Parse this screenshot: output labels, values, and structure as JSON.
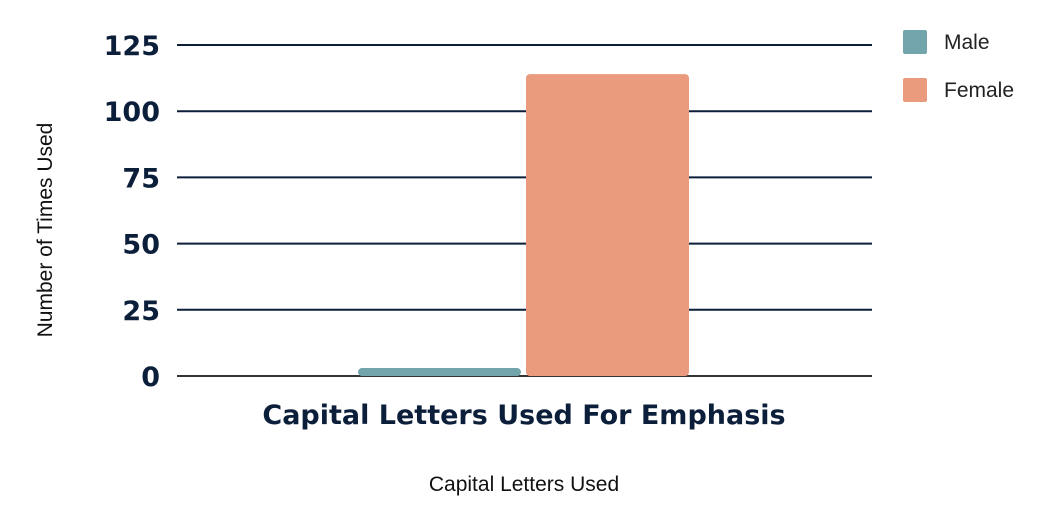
{
  "chart_data": {
    "type": "bar",
    "categories": [
      "Capital Letters Used For Emphasis"
    ],
    "series": [
      {
        "name": "Male",
        "values": [
          3
        ],
        "color": "#72a5ab"
      },
      {
        "name": "Female",
        "values": [
          114
        ],
        "color": "#eb9b7d"
      }
    ],
    "xlabel": "Capital Letters Used",
    "ylabel": "Number of Times Used",
    "ylim": [
      0,
      125
    ],
    "yticks": [
      "0",
      "25",
      "50",
      "75",
      "100",
      "125"
    ],
    "grid": true,
    "legend": "right"
  }
}
